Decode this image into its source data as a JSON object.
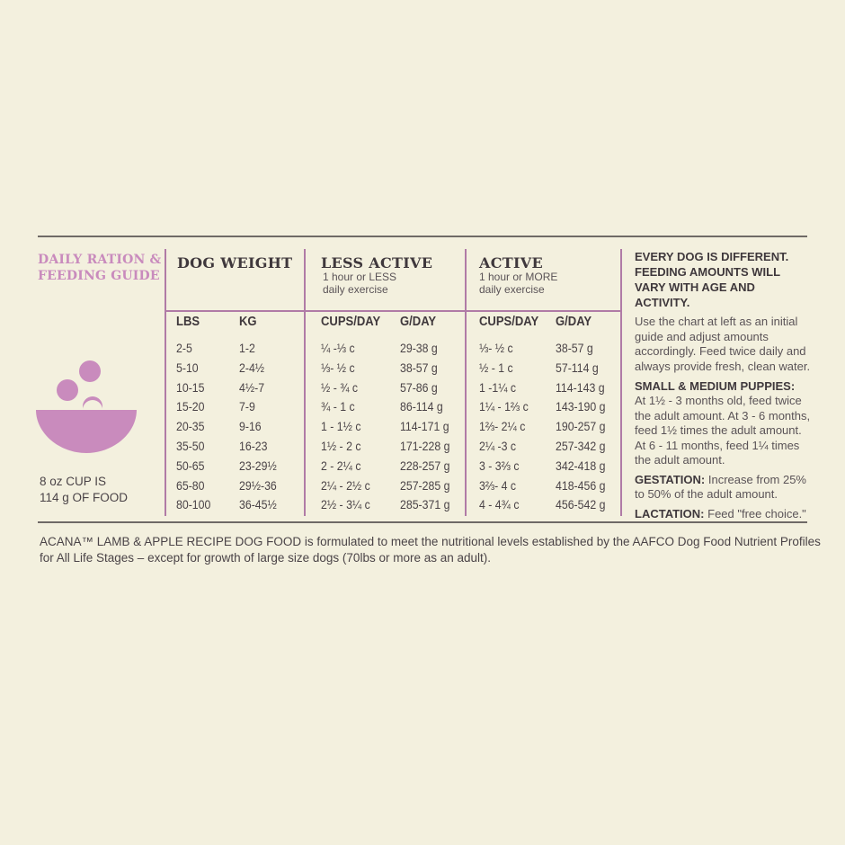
{
  "guide": {
    "title": "DAILY RATION & FEEDING GUIDE",
    "cup_note_line1": "8 oz CUP IS",
    "cup_note_line2": "114 g OF FOOD"
  },
  "colors": {
    "background": "#f3f0de",
    "accent_pink": "#c98bbd",
    "divider_pink": "#b07ba6",
    "rule_gray": "#6f6a66",
    "text": "#4a4347"
  },
  "columns": {
    "dog_weight": {
      "title": "DOG WEIGHT",
      "lbs": "LBS",
      "kg": "KG"
    },
    "less_active": {
      "title": "LESS ACTIVE",
      "sub1": "1 hour or LESS",
      "sub2": "daily exercise",
      "cups": "CUPS/DAY",
      "g": "G/DAY"
    },
    "active": {
      "title": "ACTIVE",
      "sub1": "1 hour or MORE",
      "sub2": "daily exercise",
      "cups": "CUPS/DAY",
      "g": "G/DAY"
    }
  },
  "rows": [
    {
      "lbs": "2-5",
      "kg": "1-2",
      "la_cups": "¼ -⅓ c",
      "la_g": "29-38 g",
      "a_cups": "⅓- ½ c",
      "a_g": "38-57 g"
    },
    {
      "lbs": "5-10",
      "kg": "2-4½",
      "la_cups": "⅓- ½ c",
      "la_g": "38-57 g",
      "a_cups": "½ - 1 c",
      "a_g": "57-114 g"
    },
    {
      "lbs": "10-15",
      "kg": "4½-7",
      "la_cups": "½ - ¾ c",
      "la_g": "57-86 g",
      "a_cups": "1 -1¼ c",
      "a_g": "114-143 g"
    },
    {
      "lbs": "15-20",
      "kg": "7-9",
      "la_cups": "¾ - 1 c",
      "la_g": "86-114 g",
      "a_cups": "1¼ - 1⅔ c",
      "a_g": "143-190 g"
    },
    {
      "lbs": "20-35",
      "kg": "9-16",
      "la_cups": "1 - 1½ c",
      "la_g": "114-171 g",
      "a_cups": "1⅔- 2¼ c",
      "a_g": "190-257 g"
    },
    {
      "lbs": "35-50",
      "kg": "16-23",
      "la_cups": "1½ - 2 c",
      "la_g": "171-228 g",
      "a_cups": "2¼ -3 c",
      "a_g": "257-342 g"
    },
    {
      "lbs": "50-65",
      "kg": "23-29½",
      "la_cups": "2 - 2¼ c",
      "la_g": "228-257 g",
      "a_cups": "3 - 3⅔ c",
      "a_g": "342-418 g"
    },
    {
      "lbs": "65-80",
      "kg": "29½-36",
      "la_cups": "2¼ - 2½ c",
      "la_g": "257-285 g",
      "a_cups": "3⅔- 4 c",
      "a_g": "418-456 g"
    },
    {
      "lbs": "80-100",
      "kg": "36-45½",
      "la_cups": "2½ - 3¼ c",
      "la_g": "285-371 g",
      "a_cups": "4 - 4¾ c",
      "a_g": "456-542 g"
    }
  ],
  "side": {
    "heading": "EVERY DOG IS DIFFERENT. FEEDING AMOUNTS WILL VARY WITH AGE AND ACTIVITY.",
    "intro": "Use the chart at left as an initial guide and adjust amounts accordingly. Feed twice daily and always provide fresh, clean water.",
    "puppies_heading": "SMALL & MEDIUM PUPPIES:",
    "puppies_text": "At 1½ - 3 months old, feed twice the adult amount. At 3 - 6 months, feed 1½ times the adult amount. At 6 - 11 months, feed 1¼ times the adult amount.",
    "gestation_label": "GESTATION:",
    "gestation_text": "Increase from 25% to 50% of the adult amount.",
    "lactation_label": "LACTATION:",
    "lactation_text": "Feed \"free choice.\""
  },
  "footer": {
    "text": "ACANA™ LAMB & APPLE RECIPE DOG FOOD is formulated to meet the nutritional levels established by the AAFCO Dog Food Nutrient Profiles for All Life Stages – except for growth of large size dogs (70lbs or more as an adult)."
  }
}
